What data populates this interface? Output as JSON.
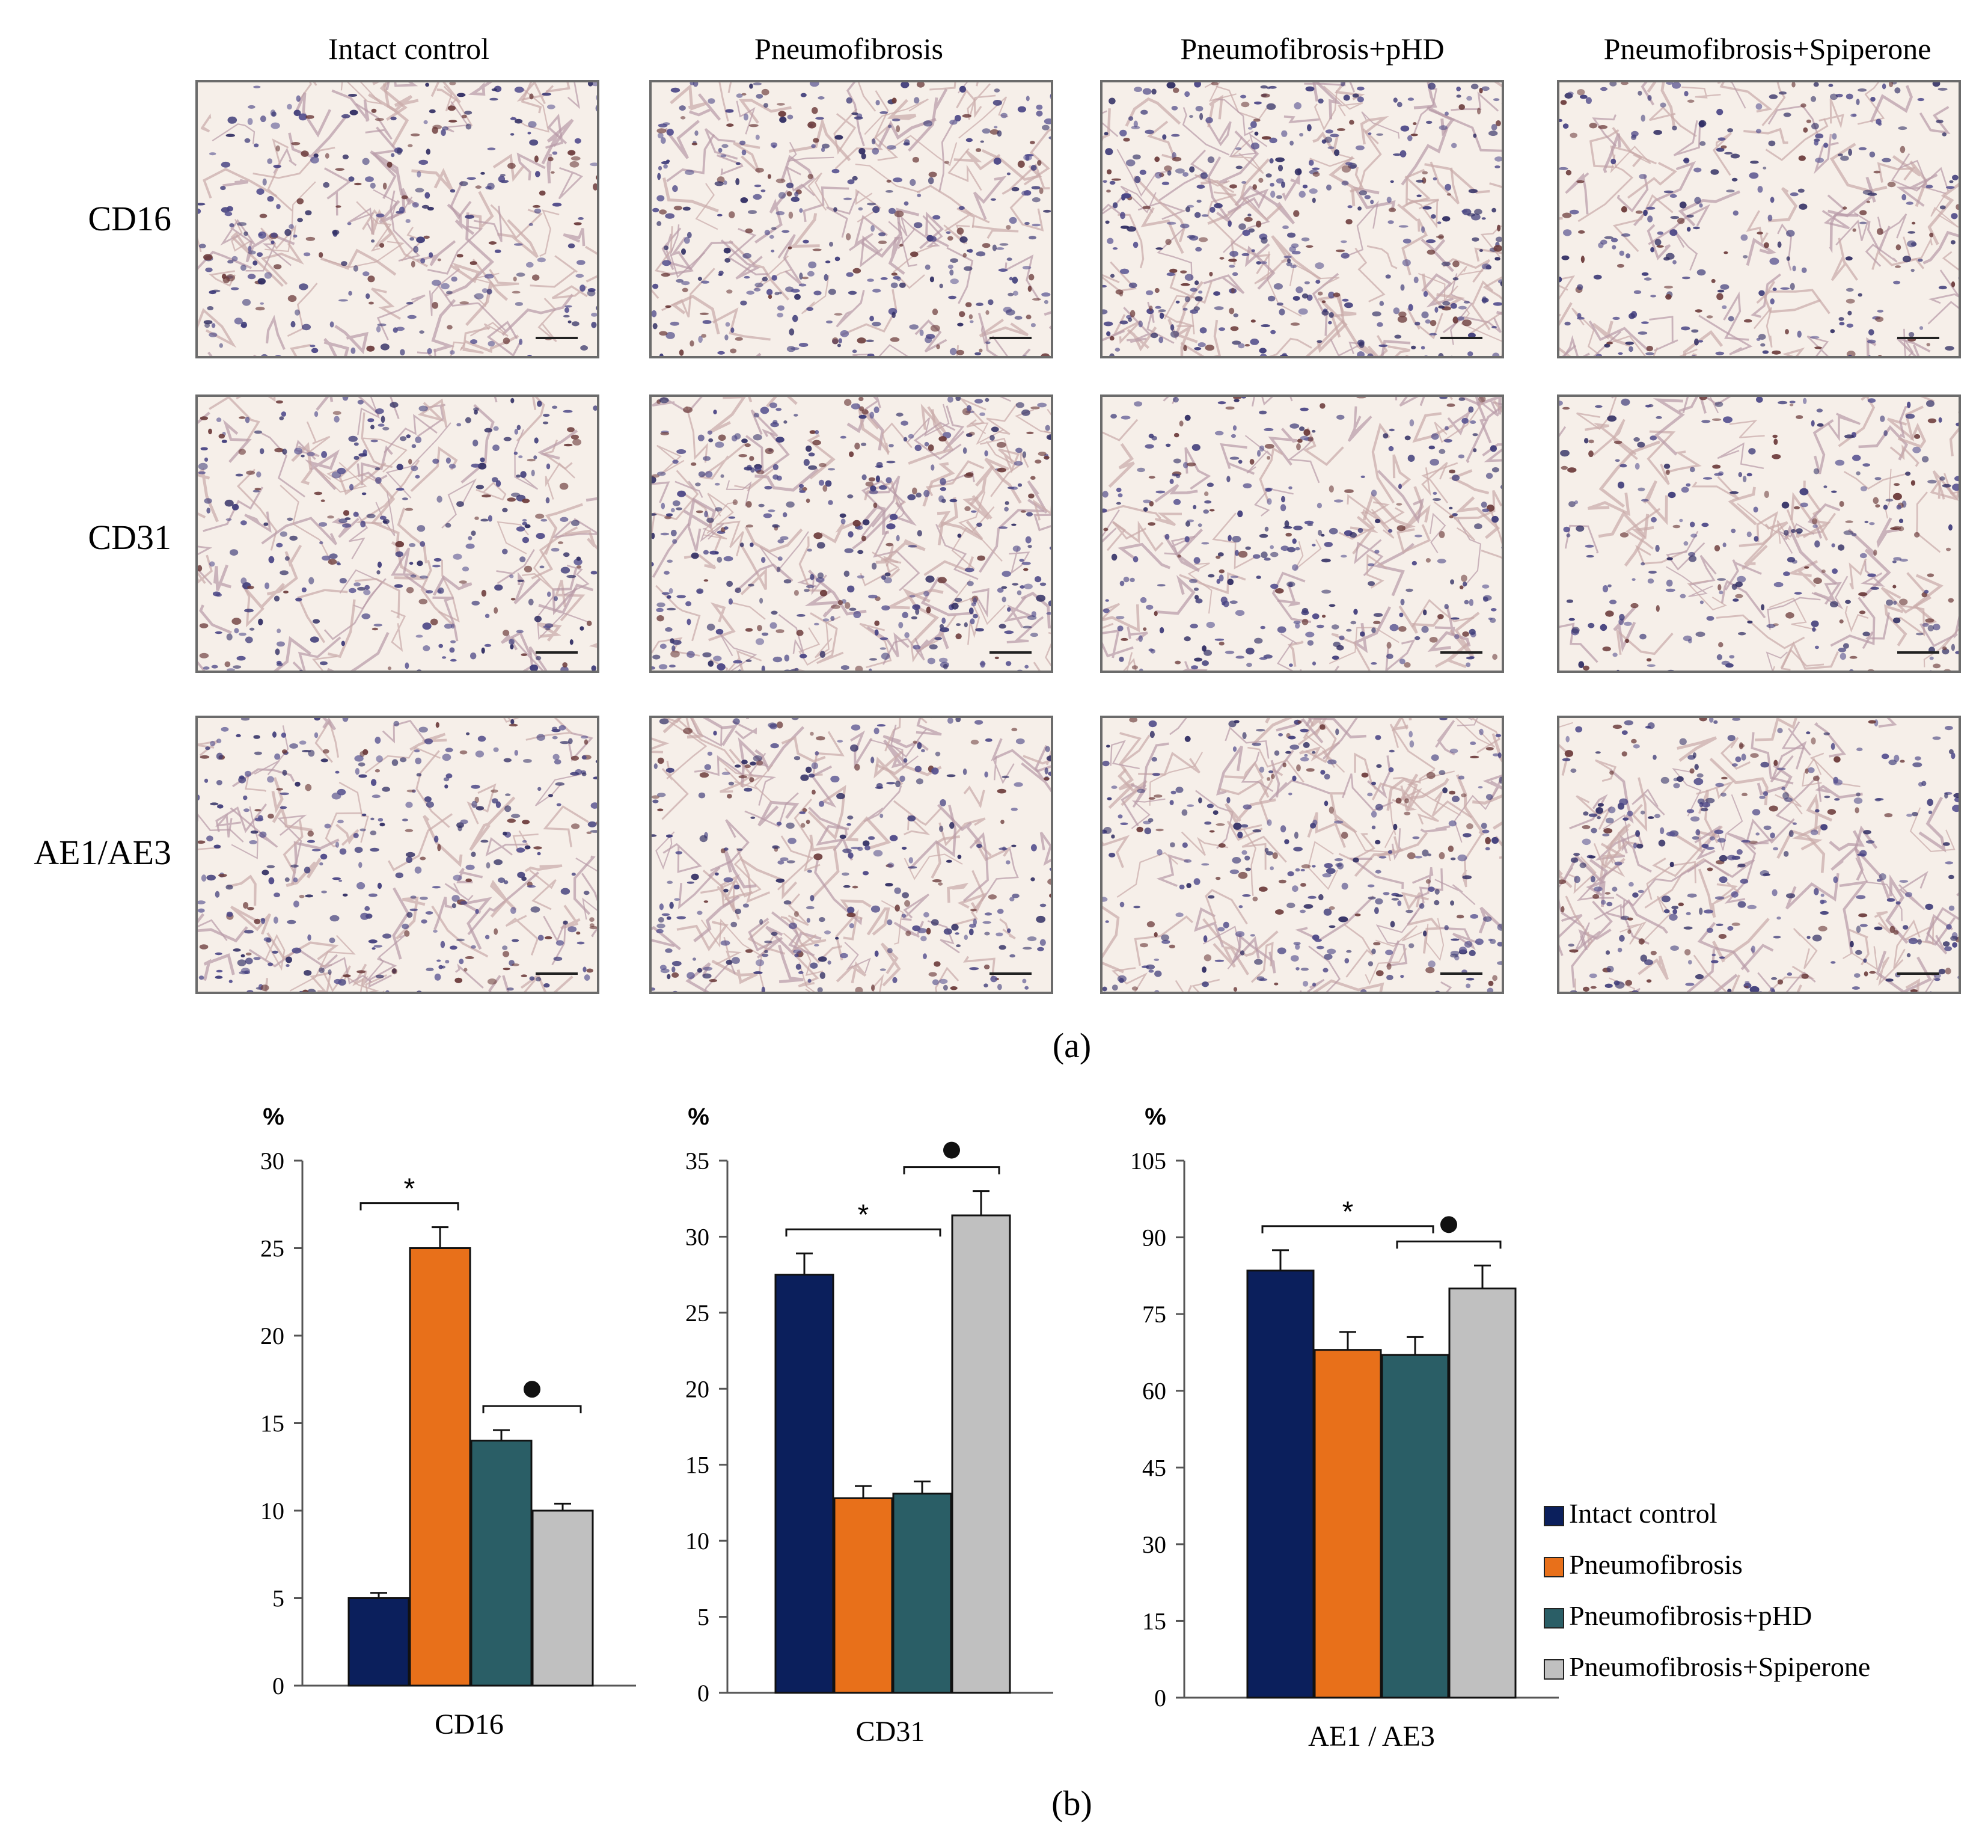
{
  "micrographs": {
    "column_titles": [
      "Intact control",
      "Pneumofibrosis",
      "Pneumofibrosis+pHD",
      "Pneumofibrosis+Spiperone"
    ],
    "row_labels": [
      "CD16",
      "CD31",
      "AE1/AE3"
    ],
    "caption": "(a)"
  },
  "charts_caption": "(b)",
  "colors": {
    "intact_control": "#0b1f5c",
    "pneumofibrosis": "#e8701a",
    "pneumofibrosis_phd": "#2a5e66",
    "pneumofibrosis_spiperone": "#c0c0c0"
  },
  "legend": [
    {
      "label": "Intact control",
      "color": "#0b1f5c"
    },
    {
      "label": "Pneumofibrosis",
      "color": "#e8701a"
    },
    {
      "label": "Pneumofibrosis+pHD",
      "color": "#2a5e66"
    },
    {
      "label": "Pneumofibrosis+Spiperone",
      "color": "#c0c0c0"
    }
  ],
  "chart_data": [
    {
      "type": "bar",
      "xlabel": "CD16",
      "ylabel": "%",
      "ylim": [
        0,
        30
      ],
      "yticks": [
        0,
        5,
        10,
        15,
        20,
        25,
        30
      ],
      "categories": [
        "Intact control",
        "Pneumofibrosis",
        "Pneumofibrosis+pHD",
        "Pneumofibrosis+Spiperone"
      ],
      "values": [
        5,
        25,
        14,
        10
      ],
      "errors": [
        0.3,
        1.2,
        0.6,
        0.4
      ],
      "annotations": [
        {
          "symbol": "*",
          "from": 0,
          "to": 1
        },
        {
          "symbol": "●",
          "from": 2,
          "to": 3
        }
      ]
    },
    {
      "type": "bar",
      "xlabel": "CD31",
      "ylabel": "%",
      "ylim": [
        0,
        35
      ],
      "yticks": [
        0,
        5,
        10,
        15,
        20,
        25,
        30,
        35
      ],
      "categories": [
        "Intact control",
        "Pneumofibrosis",
        "Pneumofibrosis+pHD",
        "Pneumofibrosis+Spiperone"
      ],
      "values": [
        27.5,
        12.8,
        13.1,
        31.4
      ],
      "errors": [
        1.4,
        0.8,
        0.8,
        1.6
      ],
      "annotations": [
        {
          "symbol": "*",
          "from": 0,
          "to": 2
        },
        {
          "symbol": "●",
          "from": 2,
          "to": 3
        }
      ]
    },
    {
      "type": "bar",
      "xlabel": "AE1 / AE3",
      "ylabel": "%",
      "ylim": [
        0,
        105
      ],
      "yticks": [
        0,
        15,
        30,
        45,
        60,
        75,
        90,
        105
      ],
      "categories": [
        "Intact control",
        "Pneumofibrosis",
        "Pneumofibrosis+pHD",
        "Pneumofibrosis+Spiperone"
      ],
      "values": [
        83.5,
        68,
        67,
        80
      ],
      "errors": [
        4,
        3.5,
        3.5,
        4.5
      ],
      "annotations": [
        {
          "symbol": "*",
          "from": 0,
          "to": 2
        },
        {
          "symbol": "●",
          "from": 2,
          "to": 3
        }
      ]
    }
  ]
}
